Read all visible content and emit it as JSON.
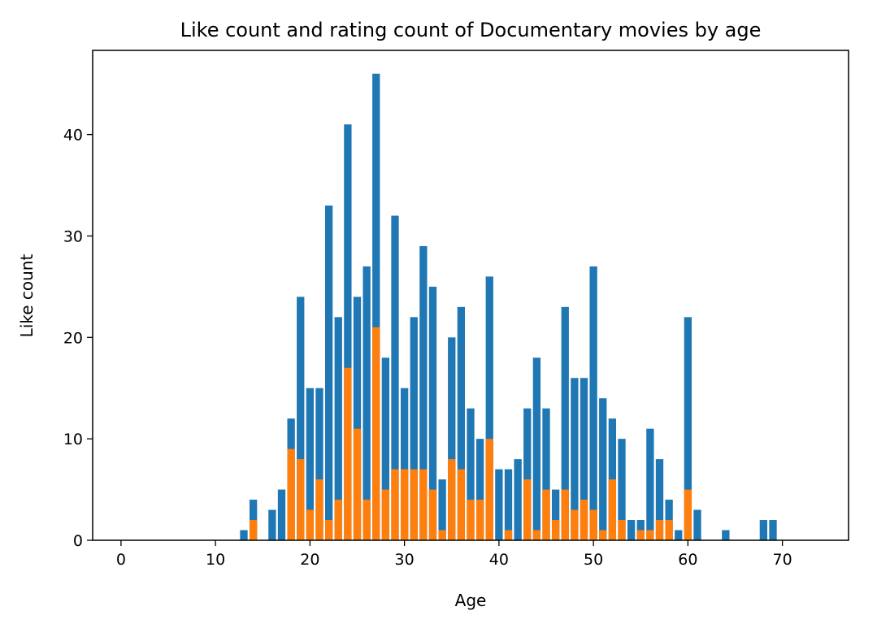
{
  "chart_data": {
    "type": "bar",
    "title": "Like count and rating count of Documentary movies by age",
    "xlabel": "Age",
    "ylabel": "Like count",
    "xlim": [
      -3,
      77
    ],
    "ylim": [
      0,
      48.3
    ],
    "xticks": [
      0,
      10,
      20,
      30,
      40,
      50,
      60,
      70
    ],
    "yticks": [
      0,
      10,
      20,
      30,
      40
    ],
    "grid": false,
    "legend": "none",
    "bar_width": 0.8,
    "series": [
      {
        "color": "#1f77b4",
        "points": [
          {
            "x": 13,
            "y": 1
          },
          {
            "x": 14,
            "y": 4
          },
          {
            "x": 16,
            "y": 3
          },
          {
            "x": 17,
            "y": 5
          },
          {
            "x": 18,
            "y": 12
          },
          {
            "x": 19,
            "y": 24
          },
          {
            "x": 20,
            "y": 15
          },
          {
            "x": 21,
            "y": 15
          },
          {
            "x": 22,
            "y": 33
          },
          {
            "x": 23,
            "y": 22
          },
          {
            "x": 24,
            "y": 41
          },
          {
            "x": 25,
            "y": 24
          },
          {
            "x": 26,
            "y": 27
          },
          {
            "x": 27,
            "y": 46
          },
          {
            "x": 28,
            "y": 18
          },
          {
            "x": 29,
            "y": 32
          },
          {
            "x": 30,
            "y": 15
          },
          {
            "x": 31,
            "y": 22
          },
          {
            "x": 32,
            "y": 29
          },
          {
            "x": 33,
            "y": 25
          },
          {
            "x": 34,
            "y": 6
          },
          {
            "x": 35,
            "y": 20
          },
          {
            "x": 36,
            "y": 23
          },
          {
            "x": 37,
            "y": 13
          },
          {
            "x": 38,
            "y": 10
          },
          {
            "x": 39,
            "y": 26
          },
          {
            "x": 40,
            "y": 7
          },
          {
            "x": 41,
            "y": 7
          },
          {
            "x": 42,
            "y": 8
          },
          {
            "x": 43,
            "y": 13
          },
          {
            "x": 44,
            "y": 18
          },
          {
            "x": 45,
            "y": 13
          },
          {
            "x": 46,
            "y": 5
          },
          {
            "x": 47,
            "y": 23
          },
          {
            "x": 48,
            "y": 16
          },
          {
            "x": 49,
            "y": 16
          },
          {
            "x": 50,
            "y": 27
          },
          {
            "x": 51,
            "y": 14
          },
          {
            "x": 52,
            "y": 12
          },
          {
            "x": 53,
            "y": 10
          },
          {
            "x": 54,
            "y": 2
          },
          {
            "x": 55,
            "y": 2
          },
          {
            "x": 56,
            "y": 11
          },
          {
            "x": 57,
            "y": 8
          },
          {
            "x": 58,
            "y": 4
          },
          {
            "x": 59,
            "y": 1
          },
          {
            "x": 60,
            "y": 22
          },
          {
            "x": 61,
            "y": 3
          },
          {
            "x": 64,
            "y": 1
          },
          {
            "x": 68,
            "y": 2
          },
          {
            "x": 69,
            "y": 2
          }
        ]
      },
      {
        "color": "#ff7f0e",
        "points": [
          {
            "x": 14,
            "y": 2
          },
          {
            "x": 18,
            "y": 9
          },
          {
            "x": 19,
            "y": 8
          },
          {
            "x": 20,
            "y": 3
          },
          {
            "x": 21,
            "y": 6
          },
          {
            "x": 22,
            "y": 2
          },
          {
            "x": 23,
            "y": 4
          },
          {
            "x": 24,
            "y": 17
          },
          {
            "x": 25,
            "y": 11
          },
          {
            "x": 26,
            "y": 4
          },
          {
            "x": 27,
            "y": 21
          },
          {
            "x": 28,
            "y": 5
          },
          {
            "x": 29,
            "y": 7
          },
          {
            "x": 30,
            "y": 7
          },
          {
            "x": 31,
            "y": 7
          },
          {
            "x": 32,
            "y": 7
          },
          {
            "x": 33,
            "y": 5
          },
          {
            "x": 34,
            "y": 1
          },
          {
            "x": 35,
            "y": 8
          },
          {
            "x": 36,
            "y": 7
          },
          {
            "x": 37,
            "y": 4
          },
          {
            "x": 38,
            "y": 4
          },
          {
            "x": 39,
            "y": 10
          },
          {
            "x": 41,
            "y": 1
          },
          {
            "x": 43,
            "y": 6
          },
          {
            "x": 44,
            "y": 1
          },
          {
            "x": 45,
            "y": 5
          },
          {
            "x": 46,
            "y": 2
          },
          {
            "x": 47,
            "y": 5
          },
          {
            "x": 48,
            "y": 3
          },
          {
            "x": 49,
            "y": 4
          },
          {
            "x": 50,
            "y": 3
          },
          {
            "x": 51,
            "y": 1
          },
          {
            "x": 52,
            "y": 6
          },
          {
            "x": 53,
            "y": 2
          },
          {
            "x": 55,
            "y": 1
          },
          {
            "x": 56,
            "y": 1
          },
          {
            "x": 57,
            "y": 2
          },
          {
            "x": 58,
            "y": 2
          },
          {
            "x": 60,
            "y": 5
          }
        ]
      }
    ]
  }
}
